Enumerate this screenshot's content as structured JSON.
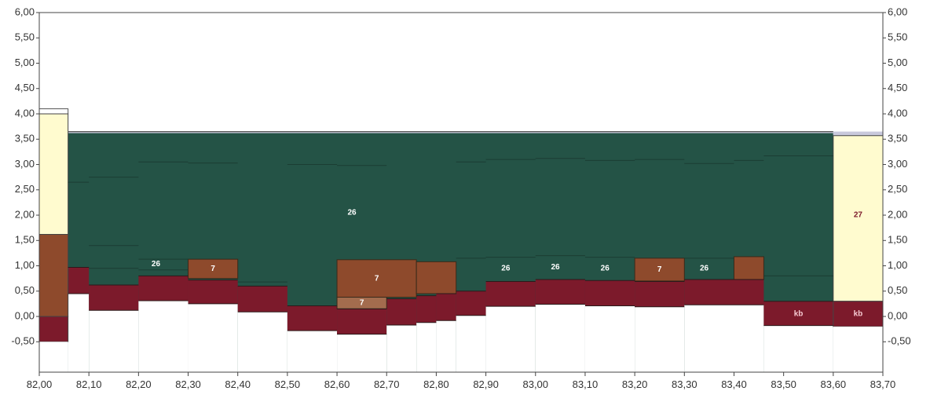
{
  "chart_data": {
    "type": "area",
    "title": "",
    "xlabel": "",
    "ylabel": "",
    "xlim": [
      82.0,
      83.7
    ],
    "ylim": [
      -1.1,
      6.0
    ],
    "grid": false,
    "colors": {
      "ground": "#245346",
      "dark_red": "#7c1a2b",
      "brown": "#8e4a2c",
      "tan": "#a36c4e",
      "yellow": "#fffbcf",
      "surface": "#c9c9dc",
      "top_line": "#555555",
      "frame": "#444444"
    },
    "x_ticks": [
      "82,00",
      "82,10",
      "82,20",
      "82,30",
      "82,40",
      "82,50",
      "82,60",
      "82,70",
      "82,80",
      "82,90",
      "83,00",
      "83,10",
      "83,20",
      "83,30",
      "83,40",
      "83,50",
      "83,60",
      "83,70"
    ],
    "y_ticks_left": [
      "6,00",
      "5,50",
      "5,00",
      "4,50",
      "4,00",
      "3,50",
      "3,00",
      "2,50",
      "2,00",
      "1,50",
      "1,00",
      "0,50",
      "0,00",
      "-0,50"
    ],
    "y_ticks_right": [
      "6,00",
      "5,50",
      "5,00",
      "4,50",
      "4,00",
      "3,50",
      "3,00",
      "2,50",
      "2,00",
      "1,50",
      "1,00",
      "0,50",
      "0,00",
      "-0,50"
    ],
    "left_column": [
      {
        "layer": "yellow",
        "x0": 82.0,
        "x1": 82.058,
        "bottom": 1.62,
        "top": 4.0
      },
      {
        "layer": "brown",
        "x0": 82.0,
        "x1": 82.058,
        "bottom": 0.0,
        "top": 1.62
      },
      {
        "layer": "dark_red",
        "x0": 82.0,
        "x1": 82.058,
        "bottom": -0.5,
        "top": 0.0
      }
    ],
    "left_column_top": 4.1,
    "surface_line": {
      "x0": 82.058,
      "x1": 83.6,
      "elevation": 3.65
    },
    "ground_top": 3.62,
    "right_column": [
      {
        "layer": "yellow",
        "x0": 83.6,
        "x1": 83.7,
        "bottom": 0.3,
        "top": 3.57,
        "label": "27"
      },
      {
        "layer": "dark_red",
        "x0": 83.6,
        "x1": 83.7,
        "bottom": -0.2,
        "top": 0.3,
        "label": "kb"
      }
    ],
    "right_column_top": 3.65,
    "bottom_layer": {
      "layer": "dark_red",
      "segments": [
        {
          "x0": 82.058,
          "x1": 82.1,
          "bottom": 0.45,
          "top": 0.97
        },
        {
          "x0": 82.1,
          "x1": 82.2,
          "bottom": 0.12,
          "top": 0.62
        },
        {
          "x0": 82.2,
          "x1": 82.3,
          "bottom": 0.31,
          "top": 0.8
        },
        {
          "x0": 82.3,
          "x1": 82.4,
          "bottom": 0.25,
          "top": 0.72
        },
        {
          "x0": 82.4,
          "x1": 82.5,
          "bottom": 0.09,
          "top": 0.6
        },
        {
          "x0": 82.5,
          "x1": 82.6,
          "bottom": -0.28,
          "top": 0.21
        },
        {
          "x0": 82.6,
          "x1": 82.7,
          "bottom": -0.35,
          "top": 0.15
        },
        {
          "x0": 82.7,
          "x1": 82.76,
          "bottom": -0.17,
          "top": 0.35
        },
        {
          "x0": 82.76,
          "x1": 82.8,
          "bottom": -0.12,
          "top": 0.41
        },
        {
          "x0": 82.8,
          "x1": 82.84,
          "bottom": -0.08,
          "top": 0.45
        },
        {
          "x0": 82.84,
          "x1": 82.9,
          "bottom": 0.02,
          "top": 0.5
        },
        {
          "x0": 82.9,
          "x1": 83.0,
          "bottom": 0.2,
          "top": 0.69
        },
        {
          "x0": 83.0,
          "x1": 83.1,
          "bottom": 0.24,
          "top": 0.73
        },
        {
          "x0": 83.1,
          "x1": 83.2,
          "bottom": 0.21,
          "top": 0.71
        },
        {
          "x0": 83.2,
          "x1": 83.3,
          "bottom": 0.19,
          "top": 0.69
        },
        {
          "x0": 83.3,
          "x1": 83.46,
          "bottom": 0.23,
          "top": 0.73
        },
        {
          "x0": 83.46,
          "x1": 83.6,
          "bottom": -0.18,
          "top": 0.3
        }
      ]
    },
    "mid_layers": [
      {
        "layer": "brown",
        "x0": 82.3,
        "x1": 82.4,
        "bottom": 0.75,
        "top": 1.13,
        "label": "7"
      },
      {
        "layer": "brown",
        "x0": 82.6,
        "x1": 82.76,
        "bottom": 0.38,
        "top": 1.12,
        "label": "7"
      },
      {
        "layer": "tan",
        "x0": 82.6,
        "x1": 82.7,
        "bottom": 0.15,
        "top": 0.38,
        "label": "7"
      },
      {
        "layer": "brown",
        "x0": 82.76,
        "x1": 82.84,
        "bottom": 0.45,
        "top": 1.08,
        "label": ""
      },
      {
        "layer": "brown",
        "x0": 83.2,
        "x1": 83.3,
        "bottom": 0.7,
        "top": 1.15,
        "label": "7"
      },
      {
        "layer": "brown",
        "x0": 83.4,
        "x1": 83.46,
        "bottom": 0.73,
        "top": 1.18,
        "label": ""
      }
    ],
    "ground_labels": [
      {
        "text": "26",
        "x": 82.63,
        "y": 2.05
      },
      {
        "text": "26",
        "x": 82.235,
        "y": 1.03
      },
      {
        "text": "26",
        "x": 82.94,
        "y": 0.95
      },
      {
        "text": "26",
        "x": 83.04,
        "y": 0.97
      },
      {
        "text": "26",
        "x": 83.14,
        "y": 0.95
      },
      {
        "text": "26",
        "x": 83.34,
        "y": 0.95
      }
    ]
  }
}
